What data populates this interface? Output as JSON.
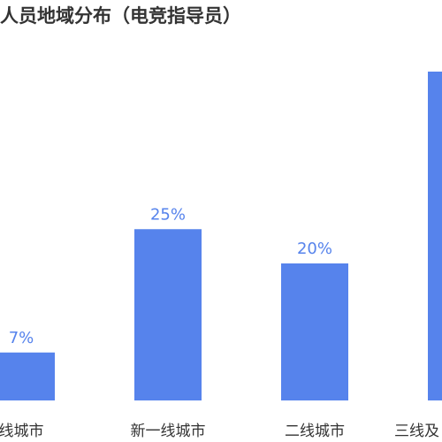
{
  "chart_data": {
    "type": "bar",
    "title": "人员地域分布（电竞指导员）",
    "categories": [
      "线城市",
      "新一线城市",
      "二线城市",
      "三线及"
    ],
    "values": [
      7,
      25,
      20,
      48
    ],
    "value_labels": [
      "7%",
      "25%",
      "20%",
      null
    ],
    "color": "#5683ec"
  }
}
